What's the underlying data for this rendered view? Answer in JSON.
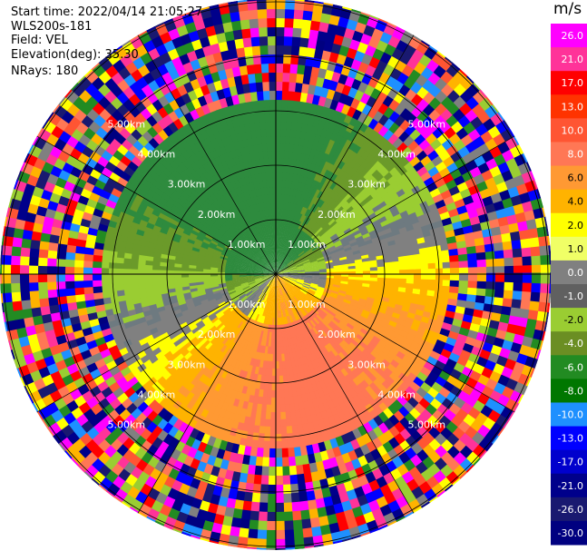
{
  "header": {
    "start_time": "Start time: 2022/04/14 21:05:27",
    "instrument": "WLS200s-181",
    "field": "Field: VEL",
    "elevation": "Elevation(deg): 35.30",
    "nrays": "NRays: 180"
  },
  "range_rings": {
    "labels": [
      "1.00km",
      "2.00km",
      "3.00km",
      "4.00km",
      "5.00km"
    ]
  },
  "colorbar": {
    "unit": "m/s",
    "ticks": [
      "26.0",
      "21.0",
      "17.0",
      "13.0",
      "10.0",
      "8.0",
      "6.0",
      "4.0",
      "2.0",
      "1.0",
      "0.0",
      "-1.0",
      "-2.0",
      "-4.0",
      "-6.0",
      "-8.0",
      "-10.0",
      "-13.0",
      "-17.0",
      "-21.0",
      "-26.0",
      "-30.0"
    ],
    "colors": [
      "#ff00ff",
      "#ff3399",
      "#ff0000",
      "#ff3300",
      "#ff5533",
      "#ff7755",
      "#ff9933",
      "#ffb300",
      "#ffff00",
      "#f0ff66",
      "#808080",
      "#606060",
      "#9acd32",
      "#6b8e23",
      "#228b22",
      "#007700",
      "#1e90ff",
      "#0000ff",
      "#0000cd",
      "#00008b",
      "#191970",
      "#000080"
    ]
  },
  "chart_data": {
    "type": "heatmap",
    "title": "",
    "field": "VEL",
    "unit": "m/s",
    "range_rings_km": [
      1,
      2,
      3,
      4,
      5
    ],
    "nrays": 180,
    "elevation_deg": 35.3,
    "value_range": [
      -30,
      26
    ]
  }
}
